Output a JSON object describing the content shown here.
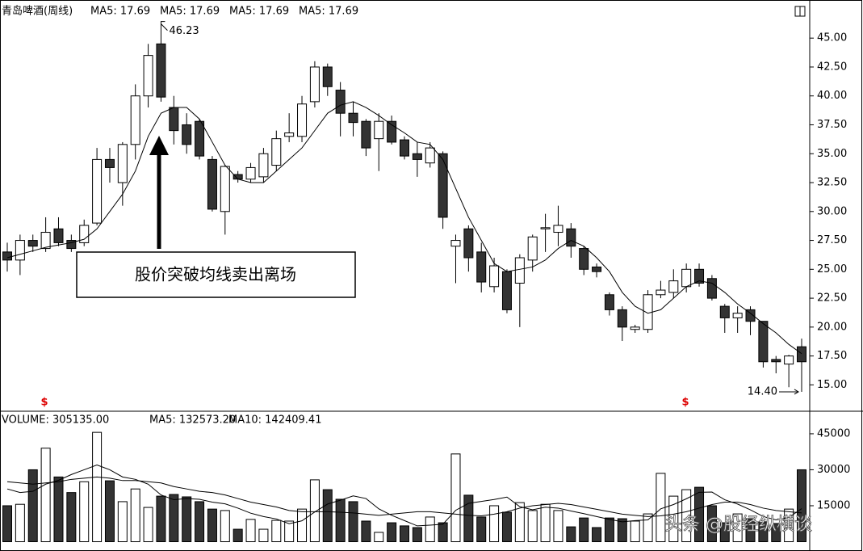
{
  "chart_data": [
    {
      "type": "candlestick",
      "title": "青岛啤酒(周线)",
      "legend": [
        "MA5: 17.69",
        "MA5: 17.69",
        "MA5: 17.69",
        "MA5: 17.69"
      ],
      "open": [
        26.5,
        25.8,
        27.5,
        26.8,
        28.5,
        27.5,
        27.3,
        29,
        34.5,
        32.5,
        35.8,
        40,
        44.5,
        39,
        37.5,
        37.8,
        34.5,
        30,
        33.2,
        32.8,
        33,
        34,
        36.5,
        36.5,
        39.5,
        42.5,
        40.5,
        38.5,
        37.8,
        36.3,
        37.8,
        36.2,
        35,
        34.2,
        35,
        27,
        28.5,
        26.5,
        23.5,
        24.8,
        23.8,
        25.8,
        28.5,
        28.2,
        28.5,
        26.8,
        25.2,
        22.8,
        21.5,
        19.8,
        19.8,
        22.8,
        23,
        23.5,
        25,
        24.2,
        21.8,
        20.8,
        21.5,
        20.5,
        17.2,
        16.8,
        18.3
      ],
      "high": [
        27.3,
        28,
        28,
        29.5,
        29.5,
        28,
        29.3,
        35.5,
        35.5,
        36,
        41,
        44.5,
        46.23,
        40,
        38.5,
        38,
        34.8,
        34,
        33.5,
        34.2,
        35.5,
        37,
        38.5,
        40,
        43,
        42.8,
        41.2,
        39.5,
        38,
        38.5,
        38.3,
        36.5,
        36,
        36,
        35.2,
        28,
        28.8,
        27.3,
        26,
        25,
        26.3,
        28,
        29.8,
        30.5,
        29,
        27,
        25.5,
        23,
        21.8,
        20.2,
        23.2,
        24,
        25,
        25.5,
        25.5,
        24.5,
        22,
        21.8,
        21.8,
        20.5,
        17.5,
        17.6,
        19
      ],
      "low": [
        24.8,
        24.5,
        26.5,
        26.5,
        27,
        26.5,
        27,
        28.8,
        32.5,
        30.5,
        34.5,
        39,
        39.5,
        35.8,
        35,
        34.5,
        30,
        28,
        32.5,
        32.5,
        32.5,
        33.5,
        36,
        36,
        39,
        40,
        36.5,
        36.5,
        34.8,
        33.5,
        35.8,
        34.5,
        33,
        33.8,
        28.5,
        23.8,
        24.8,
        23,
        23,
        21.2,
        20,
        24.8,
        26.5,
        27,
        26,
        24.5,
        24.3,
        21,
        18.8,
        19.5,
        19.5,
        22.5,
        22.5,
        23,
        23.5,
        22.3,
        19.5,
        19.5,
        19.3,
        16.5,
        16,
        14.8,
        14.4
      ],
      "close": [
        25.8,
        27.5,
        27,
        28.2,
        27.3,
        26.8,
        28.8,
        34.5,
        33.8,
        35.8,
        40,
        43.5,
        39.9,
        37,
        35.8,
        34.8,
        30.2,
        33.9,
        32.8,
        33.8,
        35,
        36.3,
        36.8,
        39.3,
        42.5,
        40.8,
        38.5,
        37.7,
        35.5,
        37.8,
        36,
        34.8,
        34.5,
        35.5,
        29.5,
        27.5,
        26,
        23.9,
        25.3,
        21.5,
        26,
        27.8,
        28.6,
        28.8,
        27,
        25,
        24.8,
        21.5,
        20,
        20,
        22.8,
        23.2,
        24,
        25,
        23.8,
        22.5,
        20.8,
        21.2,
        20.5,
        17,
        17,
        17.5,
        17
      ],
      "lines": [
        {
          "color": "#000000",
          "values": [
            26,
            26.3,
            26.6,
            26.9,
            27.1,
            27.3,
            27.6,
            28.5,
            30,
            31.5,
            33.5,
            36.5,
            38.5,
            39,
            39,
            38,
            36,
            34,
            32.8,
            32.5,
            32.5,
            33.5,
            34.5,
            35.5,
            37,
            38.5,
            39.2,
            39.5,
            39,
            38.3,
            37.5,
            36.8,
            36,
            35.8,
            34.5,
            32,
            29.5,
            27.5,
            25.5,
            24.8,
            25,
            25.2,
            25.8,
            26.8,
            27.5,
            27,
            26,
            24.8,
            23,
            21.8,
            21.2,
            21.5,
            22.5,
            23.5,
            24,
            23.8,
            23,
            22,
            21.2,
            20.3,
            19.5,
            18.5,
            17.7
          ]
        }
      ],
      "max_label": "46.23",
      "min_label": "14.40",
      "annotation": "股价突破均线卖出离场",
      "signals": [
        "$",
        "$"
      ],
      "ylim": [
        13,
        46.9
      ],
      "yticks": [
        {
          "value": 15,
          "label": "15.00"
        },
        {
          "value": 17.5,
          "label": "17.50"
        },
        {
          "value": 20,
          "label": "20.00"
        },
        {
          "value": 22.5,
          "label": "22.50"
        },
        {
          "value": 25,
          "label": "25.00"
        },
        {
          "value": 27.5,
          "label": "27.50"
        },
        {
          "value": 30,
          "label": "30.00"
        },
        {
          "value": 32.5,
          "label": "32.50"
        },
        {
          "value": 35,
          "label": "35.00"
        },
        {
          "value": 37.5,
          "label": "37.50"
        },
        {
          "value": 40,
          "label": "40.00"
        },
        {
          "value": 42.5,
          "label": "42.50"
        },
        {
          "value": 45,
          "label": "45.00"
        }
      ]
    },
    {
      "type": "bar",
      "title": "VOLUME: 305135.00",
      "legend": [
        "MA5: 132573.20",
        "MA10: 142409.41"
      ],
      "values": [
        15000,
        15600,
        30000,
        39000,
        27000,
        20500,
        25000,
        45600,
        25400,
        16700,
        22000,
        14300,
        19000,
        19700,
        18700,
        16700,
        13600,
        13000,
        5200,
        9300,
        5200,
        8900,
        8600,
        13600,
        25800,
        21700,
        17700,
        16700,
        8600,
        3900,
        7900,
        6600,
        5900,
        10300,
        7900,
        36600,
        19400,
        10300,
        15000,
        12300,
        16300,
        13000,
        15600,
        13000,
        6200,
        9900,
        5900,
        9900,
        9600,
        8600,
        11600,
        28500,
        19000,
        21700,
        22700,
        15000,
        7900,
        11600,
        9600,
        8300,
        7600,
        13600,
        30000
      ],
      "lines": [
        {
          "color": "#000000",
          "values": [
            22000,
            20500,
            21000,
            24000,
            25600,
            28000,
            30000,
            32000,
            30000,
            27000,
            26000,
            24000,
            19500,
            17500,
            18000,
            17700,
            16500,
            15800,
            14000,
            11900,
            10500,
            9500,
            7500,
            8700,
            12400,
            15700,
            17300,
            19100,
            18000,
            13700,
            11000,
            8800,
            6600,
            6900,
            7300,
            13100,
            16000,
            16800,
            17600,
            18600,
            14600,
            13300,
            14400,
            14000,
            12800,
            11700,
            10500,
            9300,
            8300,
            8800,
            9100,
            13700,
            15500,
            17900,
            20600,
            20700,
            17500,
            15700,
            13300,
            10500,
            9100,
            10100,
            13800
          ]
        },
        {
          "color": "#000000",
          "values": [
            25000,
            24500,
            24000,
            24500,
            25000,
            26000,
            26500,
            27000,
            26500,
            25500,
            25500,
            25000,
            24500,
            23000,
            22000,
            21000,
            20500,
            19500,
            18000,
            16500,
            15500,
            14500,
            13000,
            12500,
            12500,
            12500,
            12300,
            12000,
            11500,
            11000,
            11500,
            12000,
            12500,
            12500,
            12000,
            11500,
            11000,
            10800,
            11500,
            12500,
            14000,
            15000,
            15500,
            16000,
            15500,
            14500,
            13500,
            12500,
            11500,
            11000,
            10500,
            10800,
            11500,
            12500,
            14000,
            15500,
            16500,
            16500,
            15500,
            14000,
            13000,
            12500,
            12000
          ]
        }
      ],
      "ylim": [
        0,
        50700
      ],
      "yticks": [
        15000,
        30000,
        45000
      ]
    }
  ],
  "watermark": "头条 @股经纵横谈"
}
